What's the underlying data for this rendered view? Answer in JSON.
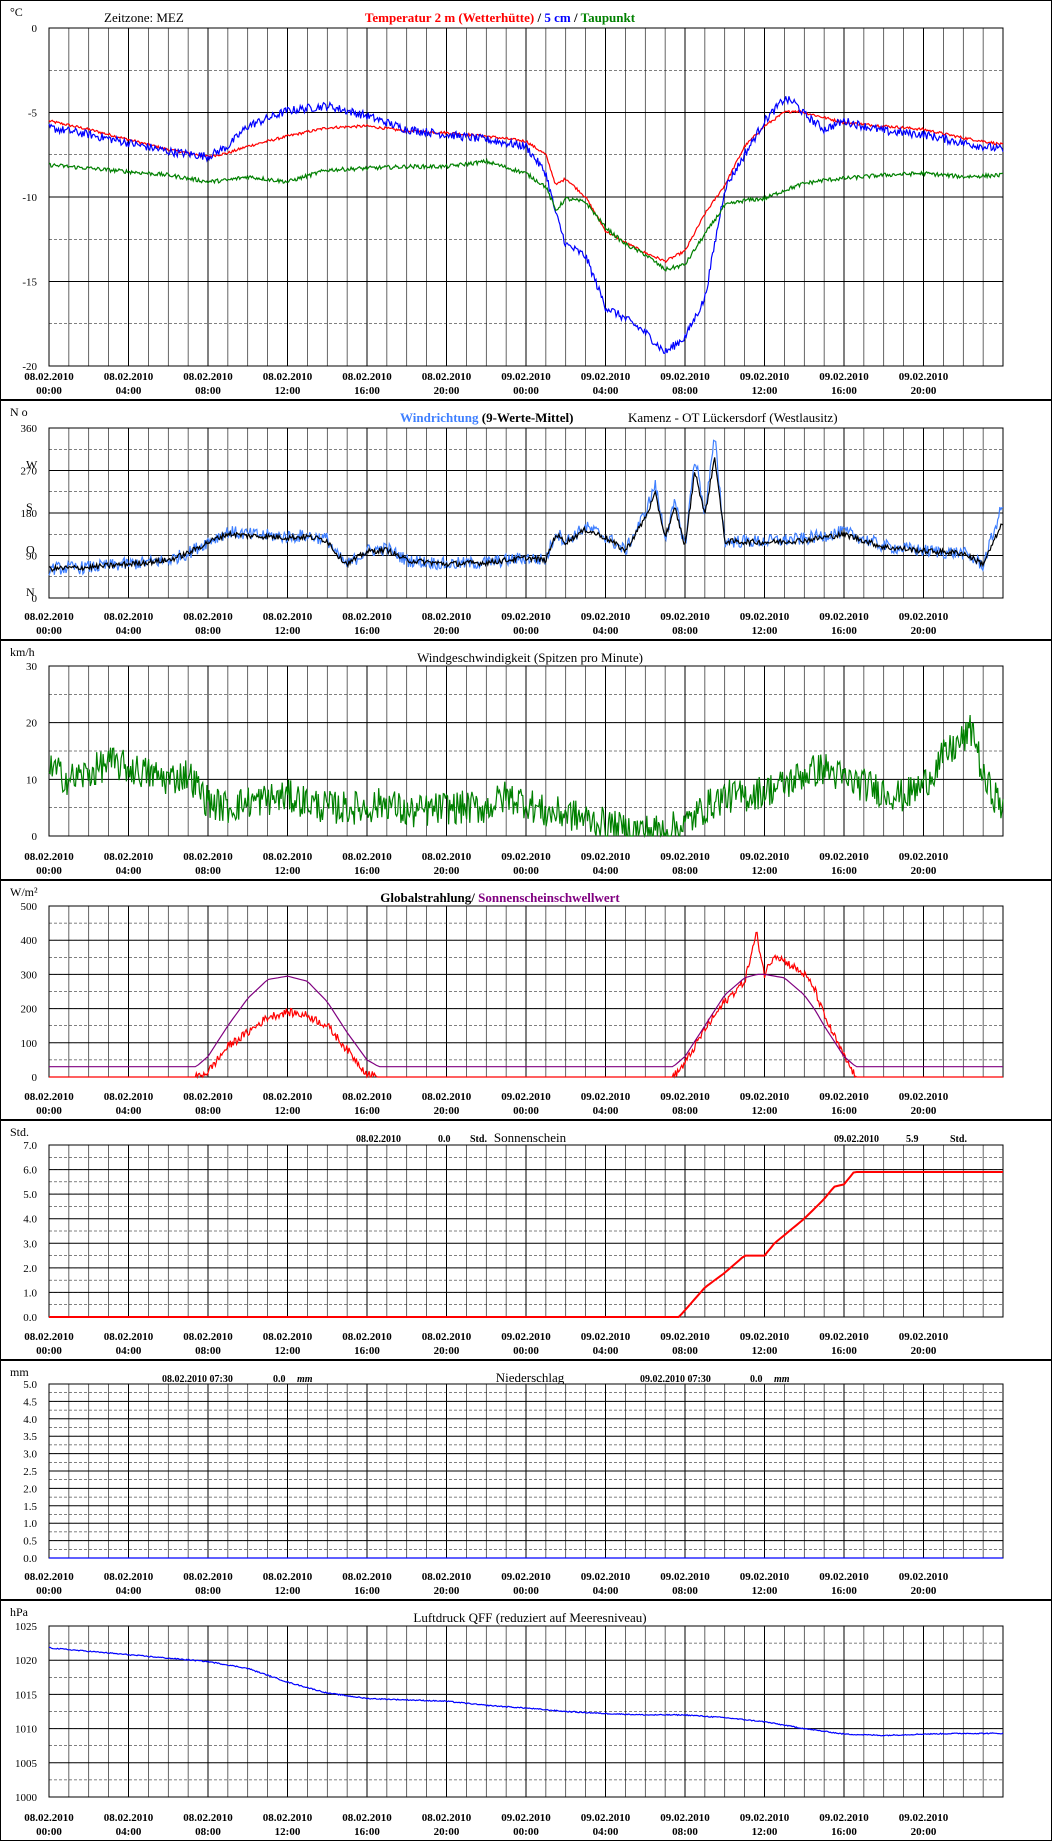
{
  "common": {
    "x_ticks": [
      [
        "08.02.2010",
        "00:00"
      ],
      [
        "08.02.2010",
        "04:00"
      ],
      [
        "08.02.2010",
        "08:00"
      ],
      [
        "08.02.2010",
        "12:00"
      ],
      [
        "08.02.2010",
        "16:00"
      ],
      [
        "08.02.2010",
        "20:00"
      ],
      [
        "09.02.2010",
        "00:00"
      ],
      [
        "09.02.2010",
        "04:00"
      ],
      [
        "09.02.2010",
        "08:00"
      ],
      [
        "09.02.2010",
        "12:00"
      ],
      [
        "09.02.2010",
        "16:00"
      ],
      [
        "09.02.2010",
        "20:00"
      ]
    ],
    "x_range_hours": [
      0,
      48
    ],
    "colors": {
      "red": "#ff0000",
      "blue": "#0000ff",
      "green": "#008000",
      "black": "#000000",
      "purple": "#800080",
      "lightblue": "#4080ff"
    }
  },
  "chart_data": [
    {
      "type": "line",
      "unit_label": "°C",
      "header_left": "Zeitzone: MEZ",
      "title_parts": [
        {
          "text": "Temperatur 2 m (Wetterhütte)",
          "color": "#ff0000"
        },
        {
          "text": " / ",
          "color": "#000000"
        },
        {
          "text": "5 cm",
          "color": "#0000ff"
        },
        {
          "text": " / ",
          "color": "#000000"
        },
        {
          "text": "Taupunkt",
          "color": "#008000"
        }
      ],
      "ylim": [
        -20,
        0
      ],
      "y_ticks": [
        0,
        -5,
        -10,
        -15,
        -20
      ],
      "y_tick_labels": [
        "0",
        "-5",
        "-10",
        "-15",
        "-20"
      ],
      "x_hours": [
        0,
        2,
        4,
        6,
        8,
        9,
        10,
        12,
        14,
        16,
        18,
        20,
        22,
        24,
        25,
        25.5,
        26,
        27,
        28,
        29,
        30,
        31,
        32,
        33,
        34,
        35,
        36,
        37,
        37.5,
        38,
        39,
        40,
        42,
        44,
        46,
        48
      ],
      "series": [
        {
          "name": "Temperatur 2 m (Wetterhütte)",
          "color": "#ff0000",
          "values": [
            -5.5,
            -6.0,
            -6.6,
            -7.2,
            -7.6,
            -7.4,
            -7.0,
            -6.4,
            -5.9,
            -5.8,
            -6.1,
            -6.2,
            -6.4,
            -6.7,
            -7.5,
            -9.3,
            -8.9,
            -10.0,
            -12.0,
            -12.7,
            -13.3,
            -13.8,
            -13.2,
            -11.0,
            -9.3,
            -7.0,
            -5.8,
            -5.0,
            -4.9,
            -5.0,
            -5.3,
            -5.6,
            -5.8,
            -6.0,
            -6.5,
            -6.9
          ]
        },
        {
          "name": "5 cm",
          "color": "#0000ff",
          "values": [
            -5.9,
            -6.3,
            -6.8,
            -7.3,
            -7.6,
            -7.0,
            -5.8,
            -4.9,
            -4.6,
            -5.2,
            -6.0,
            -6.3,
            -6.6,
            -7.0,
            -8.6,
            -11.0,
            -12.8,
            -13.5,
            -16.5,
            -17.2,
            -18.0,
            -19.2,
            -18.3,
            -16.0,
            -9.5,
            -7.5,
            -5.5,
            -4.2,
            -4.4,
            -5.1,
            -6.0,
            -5.5,
            -6.1,
            -6.3,
            -6.8,
            -7.2
          ]
        },
        {
          "name": "Taupunkt",
          "color": "#008000",
          "values": [
            -8.1,
            -8.3,
            -8.5,
            -8.7,
            -9.1,
            -9.0,
            -8.8,
            -9.1,
            -8.4,
            -8.3,
            -8.2,
            -8.2,
            -7.9,
            -8.6,
            -9.4,
            -10.8,
            -10.1,
            -10.3,
            -11.8,
            -12.8,
            -13.4,
            -14.3,
            -14.0,
            -12.2,
            -10.5,
            -10.2,
            -10.1,
            -9.6,
            -9.4,
            -9.2,
            -9.0,
            -8.9,
            -8.7,
            -8.6,
            -8.8,
            -8.7
          ]
        }
      ],
      "noise": [
        0.08,
        0.25,
        0.12
      ]
    },
    {
      "type": "line",
      "unit_label": "N o",
      "title_parts": [
        {
          "text": "Windrichtung",
          "color": "#4080ff"
        },
        {
          "text": " (9-Werte-Mittel)",
          "color": "#000000"
        }
      ],
      "station": "Kamenz - OT Lückersdorf (Westlausitz)",
      "ylim": [
        0,
        360
      ],
      "y_ticks": [
        360,
        270,
        180,
        90,
        0
      ],
      "y_tick_labels": [
        "360",
        "270",
        "180",
        "90",
        "0"
      ],
      "compass_labels": [
        [
          "W",
          270
        ],
        [
          "S",
          180
        ],
        [
          "O",
          90
        ],
        [
          "N",
          0
        ]
      ],
      "x_hours": [
        0,
        2,
        4,
        6,
        7,
        8,
        9,
        10,
        12,
        13,
        14,
        14.5,
        15,
        16,
        17,
        18,
        20,
        22,
        23,
        24,
        25,
        25.5,
        26,
        27,
        28,
        29,
        30,
        30.5,
        31,
        31.5,
        32,
        32.5,
        33,
        33.5,
        34,
        36,
        38,
        40,
        42,
        44,
        46,
        47,
        48
      ],
      "series": [
        {
          "name": "Windrichtung",
          "color": "#4080ff",
          "values": [
            62,
            65,
            72,
            80,
            95,
            120,
            140,
            135,
            130,
            132,
            125,
            90,
            70,
            100,
            105,
            80,
            72,
            75,
            80,
            85,
            80,
            140,
            120,
            150,
            130,
            100,
            180,
            240,
            130,
            200,
            110,
            300,
            180,
            340,
            120,
            120,
            125,
            140,
            110,
            100,
            95,
            70,
            200
          ]
        },
        {
          "name": "9-Werte-Mittel",
          "color": "#000000",
          "values": [
            62,
            65,
            72,
            80,
            95,
            118,
            136,
            132,
            128,
            130,
            122,
            92,
            72,
            98,
            102,
            80,
            72,
            75,
            80,
            85,
            80,
            135,
            118,
            145,
            128,
            100,
            170,
            220,
            130,
            190,
            110,
            270,
            175,
            300,
            120,
            118,
            122,
            135,
            108,
            100,
            95,
            72,
            160
          ]
        }
      ],
      "noise": [
        14,
        6
      ]
    },
    {
      "type": "line",
      "unit_label": "km/h",
      "title": "Windgeschwindigkeit (Spitzen pro Minute)",
      "ylim": [
        0,
        30
      ],
      "y_ticks": [
        30,
        20,
        10,
        0
      ],
      "y_tick_labels": [
        "30",
        "20",
        "10",
        "0"
      ],
      "x_hours": [
        0,
        1,
        2,
        3,
        4,
        5,
        6,
        7,
        8,
        9,
        10,
        12,
        14,
        16,
        17,
        18,
        20,
        22,
        23,
        24,
        25,
        26,
        27,
        28,
        29,
        30,
        31,
        32,
        33,
        34,
        35,
        36,
        37,
        38,
        39,
        40,
        41,
        42,
        43,
        44,
        45,
        46,
        46.5,
        47,
        48
      ],
      "series": [
        {
          "name": "Windgeschwindigkeit",
          "color": "#008000",
          "values": [
            12,
            10,
            11,
            13,
            12,
            11,
            10,
            11,
            6,
            5,
            6,
            7,
            5,
            5,
            6,
            4,
            5,
            5,
            7,
            6,
            4,
            4,
            3,
            2,
            1,
            1,
            1,
            2,
            5,
            7,
            7,
            8,
            9,
            11,
            12,
            10,
            9,
            8,
            7,
            9,
            14,
            17,
            19,
            10,
            5
          ]
        }
      ],
      "noise": [
        3
      ]
    },
    {
      "type": "line",
      "unit_label": "W/m²",
      "title_parts": [
        {
          "text": "Globalstrahlung/ ",
          "color": "#000000"
        },
        {
          "text": "Sonnenscheinschwellwert",
          "color": "#800080"
        }
      ],
      "ylim": [
        0,
        500
      ],
      "y_ticks": [
        500,
        400,
        300,
        200,
        100,
        0
      ],
      "y_tick_labels": [
        "500",
        "400",
        "300",
        "200",
        "100",
        "0"
      ],
      "x_hours": [
        0,
        7.4,
        8,
        9,
        10,
        11,
        12,
        13,
        14,
        15,
        16,
        16.6,
        31.4,
        32,
        33,
        34,
        35,
        35.6,
        36,
        36.5,
        37,
        38,
        38.5,
        39,
        40,
        40.6,
        48
      ],
      "series": [
        {
          "name": "Globalstrahlung",
          "color": "#ff0000",
          "values": [
            0,
            0,
            15,
            90,
            130,
            175,
            190,
            180,
            150,
            80,
            10,
            0,
            0,
            40,
            140,
            220,
            280,
            420,
            300,
            360,
            340,
            300,
            260,
            180,
            60,
            0,
            0
          ]
        },
        {
          "name": "Sonnenscheinschwellwert",
          "color": "#800080",
          "values": [
            30,
            30,
            60,
            150,
            230,
            285,
            295,
            280,
            220,
            130,
            50,
            30,
            30,
            60,
            150,
            240,
            290,
            300,
            300,
            295,
            290,
            240,
            200,
            150,
            60,
            30,
            30
          ]
        }
      ],
      "noise": [
        12,
        0
      ]
    },
    {
      "type": "line",
      "unit_label": "Std.",
      "title": "Sonnenschein",
      "day_summaries": [
        {
          "date": "08.02.2010",
          "value": "0.0",
          "unit": "Std."
        },
        {
          "date": "09.02.2010",
          "value": "5.9",
          "unit": "Std."
        }
      ],
      "ylim": [
        0,
        7
      ],
      "y_ticks": [
        7,
        6,
        5,
        4,
        3,
        2,
        1,
        0
      ],
      "y_tick_labels": [
        "7.0",
        "6.0",
        "5.0",
        "4.0",
        "3.0",
        "2.0",
        "1.0",
        "0.0"
      ],
      "x_hours": [
        0,
        31.7,
        33,
        34,
        35,
        36,
        36.5,
        38,
        39,
        39.5,
        40,
        40.5,
        48
      ],
      "series": [
        {
          "name": "Sonnenschein",
          "color": "#ff0000",
          "values": [
            0,
            0,
            1.2,
            1.8,
            2.5,
            2.5,
            3.0,
            4.0,
            4.8,
            5.3,
            5.4,
            5.9,
            5.9
          ]
        }
      ],
      "noise": [
        0
      ]
    },
    {
      "type": "line",
      "unit_label": "mm",
      "title": "Niederschlag",
      "day_summaries": [
        {
          "date": "08.02.2010 07:30",
          "value": "0.0",
          "unit": "mm"
        },
        {
          "date": "09.02.2010 07:30",
          "value": "0.0",
          "unit": "mm"
        }
      ],
      "ylim": [
        0,
        5
      ],
      "y_ticks": [
        5,
        4.5,
        4,
        3.5,
        3,
        2.5,
        2,
        1.5,
        1,
        0.5,
        0
      ],
      "y_tick_labels": [
        "5.0",
        "4.5",
        "4.0",
        "3.5",
        "3.0",
        "2.5",
        "2.0",
        "1.5",
        "1.0",
        "0.5",
        "0.0"
      ],
      "x_hours": [
        0,
        48
      ],
      "series": [
        {
          "name": "Niederschlag",
          "color": "#0000ff",
          "values": [
            0,
            0
          ]
        }
      ],
      "noise": [
        0
      ]
    },
    {
      "type": "line",
      "unit_label": "hPa",
      "title": "Luftdruck QFF (reduziert auf Meeresniveau)",
      "ylim": [
        1000,
        1025
      ],
      "y_ticks": [
        1025,
        1020,
        1015,
        1010,
        1005,
        1000
      ],
      "y_tick_labels": [
        "1025",
        "1020",
        "1015",
        "1010",
        "1005",
        "1000"
      ],
      "x_hours": [
        0,
        2,
        4,
        6,
        8,
        10,
        12,
        14,
        16,
        18,
        20,
        22,
        24,
        26,
        28,
        30,
        32,
        34,
        36,
        38,
        40,
        42,
        44,
        46,
        48
      ],
      "series": [
        {
          "name": "Luftdruck QFF",
          "color": "#0000ff",
          "values": [
            1021.8,
            1021.3,
            1020.8,
            1020.3,
            1019.8,
            1018.8,
            1016.8,
            1015.2,
            1014.4,
            1014.2,
            1014.0,
            1013.4,
            1013.0,
            1012.5,
            1012.2,
            1012.0,
            1012.0,
            1011.6,
            1011.0,
            1010.0,
            1009.2,
            1009.0,
            1009.2,
            1009.3,
            1009.3
          ]
        }
      ],
      "noise": [
        0.08
      ]
    }
  ]
}
